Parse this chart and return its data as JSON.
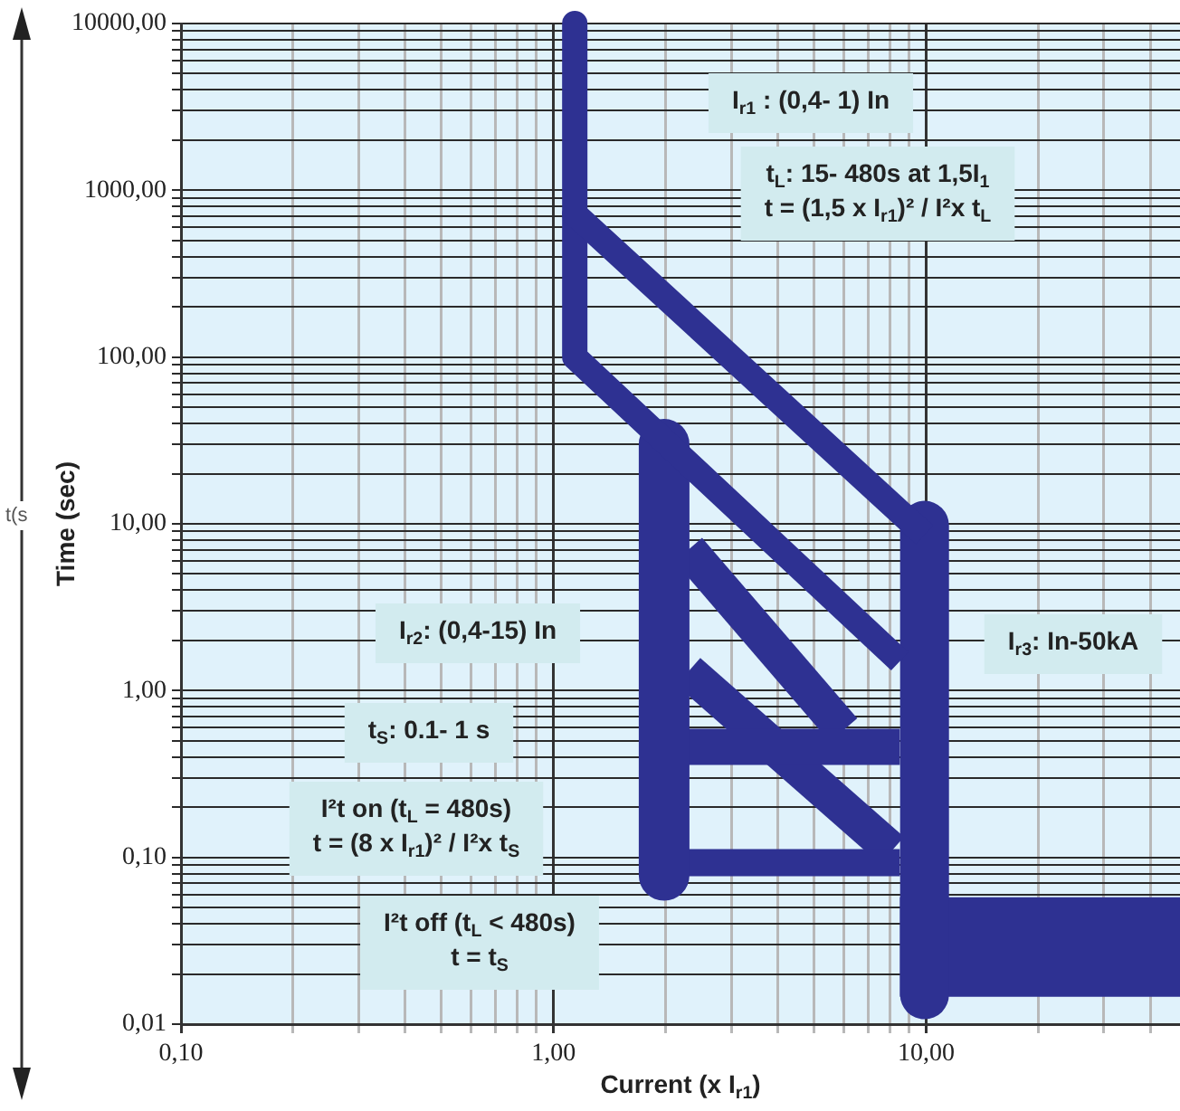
{
  "chart_data": {
    "type": "line",
    "xlabel": "Current (x I$_{r1}$)",
    "ylabel": "Time (sec)",
    "log": "xy",
    "grid": true,
    "marker": "none",
    "line_style": "solid",
    "xlim": [
      0.1,
      48
    ],
    "ylim": [
      0.01,
      10000
    ],
    "xticks": [
      {
        "value": 0.1,
        "label": "0,10"
      },
      {
        "value": 0.2,
        "label": null
      },
      {
        "value": 0.3,
        "label": null
      },
      {
        "value": 0.4,
        "label": null
      },
      {
        "value": 0.5,
        "label": null
      },
      {
        "value": 0.6,
        "label": null
      },
      {
        "value": 0.7,
        "label": null
      },
      {
        "value": 0.8,
        "label": null
      },
      {
        "value": 0.9,
        "label": null
      },
      {
        "value": 1,
        "label": "1,00"
      },
      {
        "value": 2,
        "label": null
      },
      {
        "value": 3,
        "label": null
      },
      {
        "value": 4,
        "label": null
      },
      {
        "value": 5,
        "label": null
      },
      {
        "value": 6,
        "label": null
      },
      {
        "value": 7,
        "label": null
      },
      {
        "value": 8,
        "label": null
      },
      {
        "value": 9,
        "label": null
      },
      {
        "value": 10,
        "label": "10,00"
      },
      {
        "value": 20,
        "label": null
      },
      {
        "value": 30,
        "label": null
      },
      {
        "value": 40,
        "label": null
      }
    ],
    "yticks": [
      {
        "value": 0.01,
        "label": "0,01"
      },
      {
        "value": 0.02,
        "label": null
      },
      {
        "value": 0.03,
        "label": null
      },
      {
        "value": 0.04,
        "label": null
      },
      {
        "value": 0.05,
        "label": null
      },
      {
        "value": 0.06,
        "label": null
      },
      {
        "value": 0.07,
        "label": null
      },
      {
        "value": 0.08,
        "label": null
      },
      {
        "value": 0.09,
        "label": null
      },
      {
        "value": 0.1,
        "label": "0,10"
      },
      {
        "value": 0.2,
        "label": null
      },
      {
        "value": 0.3,
        "label": null
      },
      {
        "value": 0.4,
        "label": null
      },
      {
        "value": 0.5,
        "label": null
      },
      {
        "value": 0.6,
        "label": null
      },
      {
        "value": 0.7,
        "label": null
      },
      {
        "value": 0.8,
        "label": null
      },
      {
        "value": 0.9,
        "label": null
      },
      {
        "value": 1,
        "label": "1,00"
      },
      {
        "value": 2,
        "label": null
      },
      {
        "value": 3,
        "label": null
      },
      {
        "value": 4,
        "label": null
      },
      {
        "value": 5,
        "label": null
      },
      {
        "value": 6,
        "label": null
      },
      {
        "value": 7,
        "label": null
      },
      {
        "value": 8,
        "label": null
      },
      {
        "value": 9,
        "label": null
      },
      {
        "value": 10,
        "label": "10,00"
      },
      {
        "value": 20,
        "label": null
      },
      {
        "value": 30,
        "label": null
      },
      {
        "value": 40,
        "label": null
      },
      {
        "value": 50,
        "label": null
      },
      {
        "value": 60,
        "label": null
      },
      {
        "value": 70,
        "label": null
      },
      {
        "value": 80,
        "label": null
      },
      {
        "value": 90,
        "label": null
      },
      {
        "value": 100,
        "label": "100,00"
      },
      {
        "value": 200,
        "label": null
      },
      {
        "value": 300,
        "label": null
      },
      {
        "value": 400,
        "label": null
      },
      {
        "value": 500,
        "label": null
      },
      {
        "value": 600,
        "label": null
      },
      {
        "value": 700,
        "label": null
      },
      {
        "value": 800,
        "label": null
      },
      {
        "value": 900,
        "label": null
      },
      {
        "value": 1000,
        "label": "1000,00"
      },
      {
        "value": 2000,
        "label": null
      },
      {
        "value": 3000,
        "label": null
      },
      {
        "value": 4000,
        "label": null
      },
      {
        "value": 5000,
        "label": null
      },
      {
        "value": 6000,
        "label": null
      },
      {
        "value": 7000,
        "label": null
      },
      {
        "value": 8000,
        "label": null
      },
      {
        "value": 9000,
        "label": null
      },
      {
        "value": 10000,
        "label": "10000,00"
      }
    ],
    "series": [
      {
        "color": "#2e3192",
        "x": [
          1.14,
          1.14,
          9.9
        ],
        "values": [
          10000,
          720,
          8.6
        ]
      },
      {
        "color": "#2e3192",
        "x": [
          1.14,
          1.14,
          8.5
        ],
        "values": [
          720,
          100,
          1.5
        ]
      },
      {
        "color": "#2e3192",
        "x": [
          9.9,
          9.9
        ],
        "values": [
          9.8,
          0.015
        ]
      },
      {
        "color": "#2e3192",
        "x": [
          8.5,
          48
        ],
        "values": [
          0.029,
          0.029
        ]
      },
      {
        "color": "#2e3192",
        "x": [
          1.98,
          1.98
        ],
        "values": [
          30,
          0.078
        ]
      },
      {
        "color": "#2e3192",
        "x": [
          2.3,
          8.5
        ],
        "values": [
          0.46,
          0.46
        ]
      },
      {
        "color": "#2e3192",
        "x": [
          2.3,
          8.5
        ],
        "values": [
          0.093,
          0.093
        ]
      },
      {
        "color": "#2e3192",
        "x": [
          2.3,
          6.0
        ],
        "values": [
          7.0,
          0.58
        ]
      },
      {
        "color": "#2e3192",
        "x": [
          2.3,
          8.1
        ],
        "values": [
          1.3,
          0.11
        ]
      }
    ],
    "annotations": [
      "I$_{r1}$ : (0,4- 1) In",
      "t$_{L}$: 15- 480s at 1,5I$_{1}$\nt = (1,5 x I$_{r1}$)² / I²x t$_{L}$",
      "I$_{r2}$: (0,4-15) In",
      "t$_{S}$: 0.1- 1 s",
      "I²t on (t$_{L}$ = 480s)\nt = (8 x I$_{r1}$)² / I²x t$_{S}$",
      "I²t off (t$_{L}$ < 480s)\nt = t$_{S}$",
      "I$_{r3}$: In-50kA",
      "t(s"
    ]
  }
}
